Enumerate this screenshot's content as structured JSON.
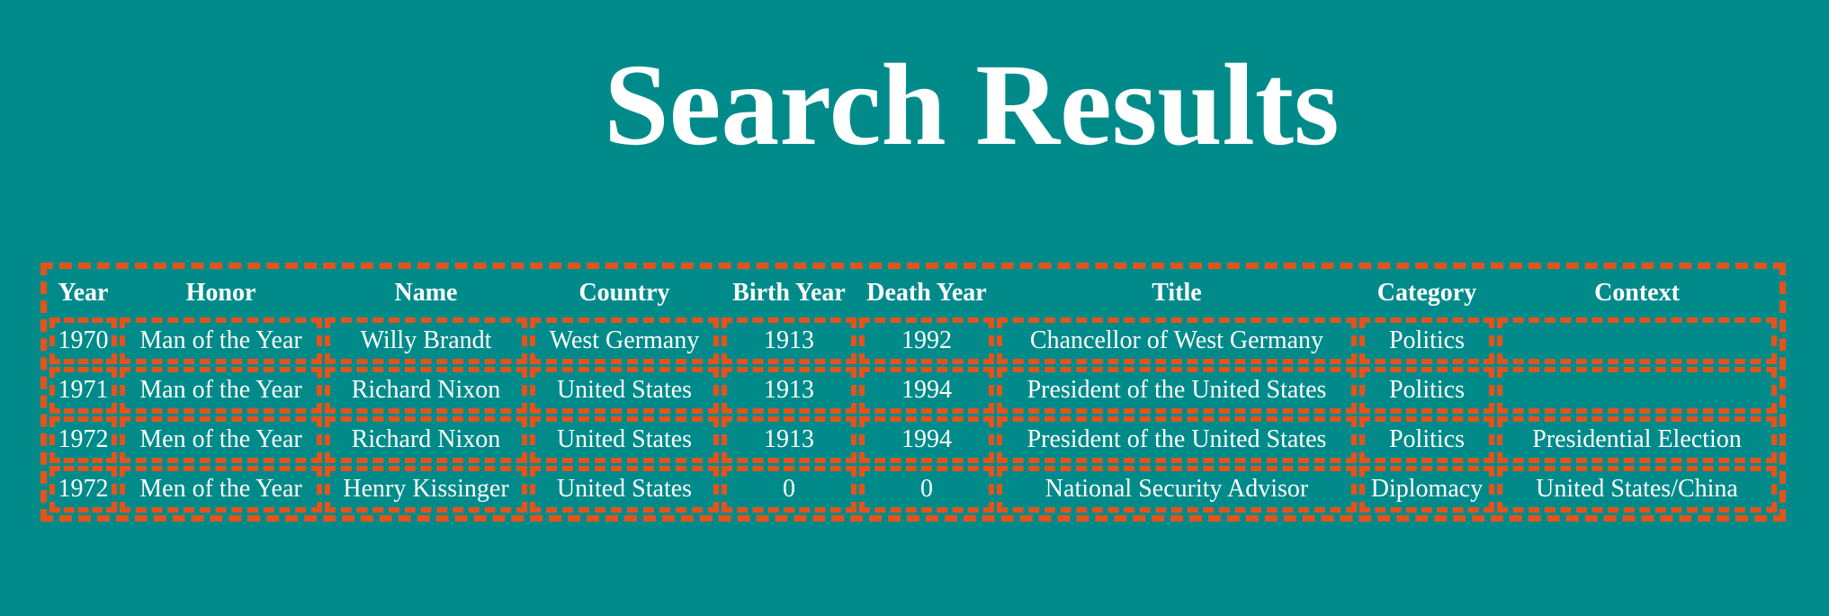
{
  "page": {
    "title": "Search Results"
  },
  "table": {
    "columns": [
      "Year",
      "Honor",
      "Name",
      "Country",
      "Birth Year",
      "Death Year",
      "Title",
      "Category",
      "Context"
    ],
    "rows": [
      [
        "1970",
        "Man of the Year",
        "Willy Brandt",
        "West Germany",
        "1913",
        "1992",
        "Chancellor of West Germany",
        "Politics",
        ""
      ],
      [
        "1971",
        "Man of the Year",
        "Richard Nixon",
        "United States",
        "1913",
        "1994",
        "President of the United States",
        "Politics",
        ""
      ],
      [
        "1972",
        "Men of the Year",
        "Richard Nixon",
        "United States",
        "1913",
        "1994",
        "President of the United States",
        "Politics",
        "Presidential Election"
      ],
      [
        "1972",
        "Men of the Year",
        "Henry Kissinger",
        "United States",
        "0",
        "0",
        "National Security Advisor",
        "Diplomacy",
        "United States/China"
      ]
    ]
  },
  "colors": {
    "background": "#008b8a",
    "border": "#e4531b",
    "text": "#ffffff"
  }
}
